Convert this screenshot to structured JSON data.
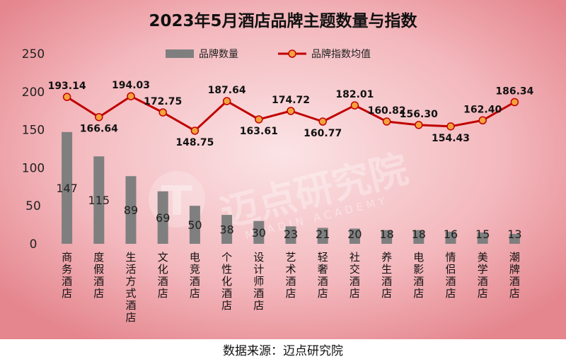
{
  "chart_data": {
    "type": "bar",
    "title": "2023年5月酒店品牌主题数量与指数",
    "categories": [
      "商务酒店",
      "度假酒店",
      "生活方式酒店",
      "文化酒店",
      "电竞酒店",
      "个性化酒店",
      "设计师酒店",
      "艺术酒店",
      "轻奢酒店",
      "社交酒店",
      "养生酒店",
      "电影酒店",
      "情侣酒店",
      "美学酒店",
      "潮牌酒店"
    ],
    "series": [
      {
        "name": "品牌数量",
        "type": "bar",
        "color": "#7f7f7f",
        "values": [
          147,
          115,
          89,
          69,
          50,
          38,
          30,
          23,
          21,
          20,
          18,
          18,
          16,
          15,
          13
        ],
        "labels": [
          "147",
          "115",
          "89",
          "69",
          "50",
          "38",
          "30",
          "23",
          "21",
          "20",
          "18",
          "18",
          "16",
          "15",
          "13"
        ]
      },
      {
        "name": "品牌指数均值",
        "type": "line",
        "color": "#c00000",
        "marker_color": "#f4a23c",
        "values": [
          193.14,
          166.64,
          194.03,
          172.75,
          148.75,
          187.64,
          163.61,
          174.72,
          160.77,
          182.01,
          160.82,
          156.3,
          154.43,
          162.4,
          186.34
        ],
        "labels": [
          "193.14",
          "166.64",
          "194.03",
          "172.75",
          "148.75",
          "187.64",
          "163.61",
          "174.72",
          "160.77",
          "182.01",
          "160.82",
          "156.30",
          "154.43",
          "162.40",
          "186.34"
        ]
      }
    ],
    "yticks": [
      "0",
      "50",
      "100",
      "150",
      "200",
      "250"
    ],
    "ylim": [
      0,
      250
    ],
    "legend_position": "top",
    "grid": false
  },
  "watermark": {
    "text_cn": "迈点研究院",
    "text_en": "MEADIN ACADEMY"
  },
  "source_text": "数据来源：迈点研究院",
  "colors": {
    "background_center": "#f9d6d9",
    "background_edge": "#e5868e"
  }
}
